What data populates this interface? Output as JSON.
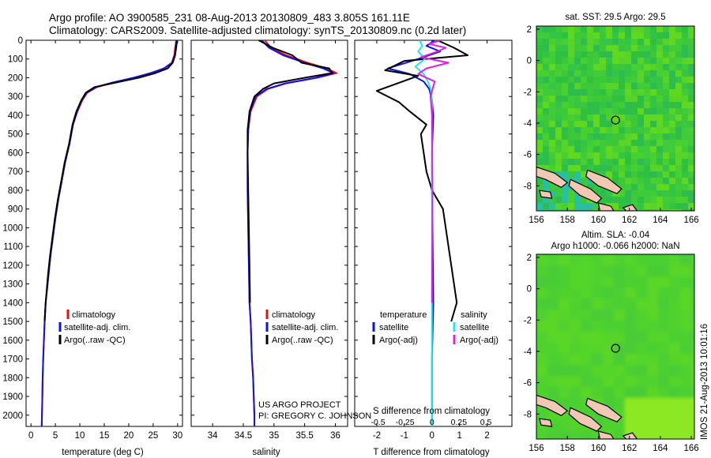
{
  "title": {
    "line1": "Argo profile: AO 3900585_231 08-Aug-2013 20130809_483 3.805S 161.11E",
    "line2": "Climatology: CARS2009. Satellite-adjusted climatology: synTS_20130809.nc (0.2d later)"
  },
  "colors": {
    "climatology": "#e81010",
    "satellite": "#1010e8",
    "argo": "#000000",
    "salinity_satellite": "#20e8e8",
    "salinity_argo": "#e020e0",
    "map_background": "#22cc40",
    "land": "#f0c8b4",
    "shallow": "#20c8c8"
  },
  "chart_data": [
    {
      "type": "line",
      "name": "temperature-profile",
      "xlabel": "temperature (deg C)",
      "ylabel": "",
      "xlim": [
        -1,
        31
      ],
      "ylim": [
        2060,
        0
      ],
      "xticks": [
        0,
        5,
        10,
        15,
        20,
        25,
        30
      ],
      "yticks": [
        0,
        100,
        200,
        300,
        400,
        500,
        600,
        700,
        800,
        900,
        1000,
        1100,
        1200,
        1300,
        1400,
        1500,
        1600,
        1700,
        1800,
        1900,
        2000
      ],
      "legend": {
        "position": "lower-center",
        "entries": [
          "climatology",
          "satellite-adj. clim.",
          "Argo(..raw -QC)"
        ]
      },
      "series": [
        {
          "name": "climatology",
          "color": "#e81010",
          "x": [
            29.7,
            29.5,
            29.3,
            28.8,
            27.2,
            24.5,
            21.0,
            17.0,
            13.5,
            11.5,
            10.5,
            9.5,
            8.6,
            7.9,
            7.0,
            6.3,
            5.6,
            5.0,
            4.5,
            4.0,
            3.6,
            3.0,
            2.8,
            2.5,
            2.4,
            2.3,
            2.2
          ],
          "y": [
            0,
            40,
            80,
            120,
            150,
            175,
            200,
            225,
            250,
            280,
            320,
            380,
            450,
            550,
            650,
            750,
            850,
            950,
            1050,
            1150,
            1250,
            1400,
            1500,
            1700,
            1800,
            1950,
            2060
          ]
        },
        {
          "name": "satellite-adj. clim.",
          "color": "#1010e8",
          "x": [
            29.8,
            29.6,
            29.4,
            28.9,
            27.3,
            24.6,
            21.0,
            16.8,
            13.3,
            11.4,
            10.4,
            9.4,
            8.6,
            7.9,
            7.0,
            6.3,
            5.6,
            5.0,
            4.5,
            4.0,
            3.6,
            3.0,
            2.8,
            2.5,
            2.4,
            2.3,
            2.2
          ],
          "y": [
            0,
            40,
            80,
            120,
            150,
            175,
            200,
            225,
            250,
            280,
            320,
            380,
            450,
            550,
            650,
            750,
            850,
            950,
            1050,
            1150,
            1250,
            1400,
            1500,
            1700,
            1800,
            1950,
            2060
          ]
        },
        {
          "name": "Argo(..raw -QC)",
          "color": "#000000",
          "x": [
            29.9,
            29.7,
            29.5,
            29.0,
            28.0,
            25.5,
            22.0,
            17.5,
            13.0,
            11.2,
            10.3,
            9.3,
            8.5,
            7.8,
            6.9,
            6.2,
            5.5,
            4.9,
            4.4,
            3.9,
            3.5,
            3.0,
            2.8
          ],
          "y": [
            0,
            40,
            80,
            120,
            150,
            175,
            200,
            225,
            250,
            280,
            320,
            380,
            450,
            550,
            650,
            750,
            850,
            950,
            1050,
            1150,
            1250,
            1400,
            1500
          ]
        }
      ]
    },
    {
      "type": "line",
      "name": "salinity-profile",
      "xlabel": "salinity",
      "ylabel": "",
      "xlim": [
        33.65,
        36.2
      ],
      "ylim": [
        2060,
        0
      ],
      "xticks": [
        34,
        34.5,
        35,
        35.5,
        36
      ],
      "legend": {
        "position": "lower-center",
        "entries": [
          "climatology",
          "satellite-adj. clim.",
          "Argo(..raw -QC)"
        ]
      },
      "annotations": [
        "US ARGO PROJECT",
        "PI: GREGORY C. JOHNSON"
      ],
      "series": [
        {
          "name": "climatology",
          "color": "#e81010",
          "x": [
            34.85,
            34.95,
            35.2,
            35.55,
            35.85,
            36.02,
            35.7,
            35.2,
            34.9,
            34.72,
            34.62,
            34.58,
            34.57,
            34.57,
            34.58,
            34.59,
            34.6,
            34.62,
            34.63,
            34.64,
            34.66,
            34.67,
            34.68,
            34.68
          ],
          "y": [
            0,
            40,
            80,
            120,
            150,
            175,
            200,
            230,
            260,
            300,
            380,
            480,
            600,
            800,
            1000,
            1200,
            1400,
            1500,
            1600,
            1700,
            1800,
            1900,
            2000,
            2060
          ]
        },
        {
          "name": "satellite-adj. clim.",
          "color": "#1010e8",
          "x": [
            34.8,
            34.92,
            35.15,
            35.5,
            35.8,
            35.97,
            35.68,
            35.18,
            34.88,
            34.7,
            34.61,
            34.58,
            34.57,
            34.57,
            34.58,
            34.59,
            34.6,
            34.62,
            34.63,
            34.64,
            34.66,
            34.67,
            34.68,
            34.68
          ],
          "y": [
            0,
            40,
            80,
            120,
            150,
            175,
            200,
            230,
            260,
            300,
            380,
            480,
            600,
            800,
            1000,
            1200,
            1400,
            1500,
            1600,
            1700,
            1800,
            1900,
            2000,
            2060
          ]
        },
        {
          "name": "Argo(..raw -QC)",
          "color": "#000000",
          "x": [
            34.75,
            34.98,
            35.3,
            35.45,
            35.9,
            35.95,
            35.5,
            35.0,
            34.82,
            34.68,
            34.6,
            34.57,
            34.57,
            34.58,
            34.59,
            34.6,
            34.61
          ],
          "y": [
            0,
            40,
            80,
            120,
            150,
            175,
            200,
            230,
            260,
            300,
            380,
            480,
            600,
            800,
            1000,
            1200,
            1400
          ]
        }
      ]
    },
    {
      "type": "line",
      "name": "difference-profile",
      "xlabel": "T difference from climatology",
      "x2label": "S difference from climatology",
      "xlim": [
        -2.8,
        2.9
      ],
      "ylim": [
        2060,
        0
      ],
      "xticks": [
        -2,
        -1,
        0,
        1,
        2
      ],
      "x2ticks": [
        -0.5,
        -0.25,
        0,
        0.25,
        0.5
      ],
      "legend": {
        "position": "lower-center",
        "entries": [
          "temperature",
          "satellite",
          "Argo(-adj)",
          "salinity",
          "satellite",
          "Argo(-adj)"
        ]
      },
      "series": [
        {
          "name": "temperature satellite",
          "color": "#1010e8",
          "x": [
            0.1,
            -0.2,
            0.3,
            -0.5,
            -1.6,
            -0.8,
            -0.3,
            -0.1,
            0.0,
            0.05,
            0.0,
            0.0,
            0.02,
            0.05,
            0.0,
            0.0,
            0.0
          ],
          "y": [
            0,
            30,
            60,
            100,
            150,
            180,
            220,
            260,
            320,
            400,
            600,
            800,
            1000,
            1400,
            1700,
            1900,
            2060
          ]
        },
        {
          "name": "temperature Argo(-adj)",
          "color": "#000000",
          "x": [
            0.2,
            0.8,
            1.3,
            -1.0,
            -1.7,
            -0.5,
            -2.0,
            -1.2,
            -0.8,
            -0.2,
            -0.4,
            -0.3,
            -0.2,
            0.0,
            0.4,
            0.5,
            0.7,
            0.9,
            0.7
          ],
          "y": [
            0,
            40,
            80,
            110,
            160,
            190,
            270,
            330,
            380,
            450,
            500,
            600,
            700,
            800,
            900,
            1000,
            1200,
            1400,
            1500
          ]
        },
        {
          "name": "salinity satellite",
          "color": "#20e8e8",
          "x": [
            -0.45,
            -0.35,
            -0.5,
            -0.25,
            -0.6,
            -0.3,
            -0.15,
            -0.05,
            0.0,
            0.0,
            0.0,
            0.0,
            0.0,
            0.0,
            0.0
          ],
          "y": [
            0,
            30,
            60,
            100,
            140,
            180,
            220,
            260,
            320,
            400,
            600,
            1000,
            1500,
            1900,
            2060
          ]
        },
        {
          "name": "salinity Argo(-adj)",
          "color": "#e020e0",
          "x": [
            0.3,
            -0.1,
            0.5,
            0.2,
            -0.4,
            0.6,
            -0.2,
            -0.5,
            0.1,
            -0.05,
            0.0,
            0.02,
            0.0
          ],
          "y": [
            0,
            20,
            40,
            60,
            90,
            120,
            150,
            180,
            220,
            300,
            400,
            800,
            1400
          ]
        }
      ]
    },
    {
      "type": "heatmap",
      "name": "sst-map",
      "title": "sat. SST: 29.5 Argo: 29.5",
      "xlim": [
        156,
        166.2
      ],
      "ylim": [
        -9.6,
        2.2
      ],
      "xticks": [
        156,
        158,
        160,
        162,
        164,
        166
      ],
      "yticks": [
        2,
        0,
        -2,
        -4,
        -6,
        -8
      ],
      "marker": {
        "lon": 161.11,
        "lat": -3.805
      }
    },
    {
      "type": "heatmap",
      "name": "sla-map",
      "title": "Altim. SLA: -0.04",
      "subtitle": "Argo h1000: -0.066 h2000: NaN",
      "xlim": [
        156,
        166.2
      ],
      "ylim": [
        -9.6,
        2.2
      ],
      "xticks": [
        156,
        158,
        160,
        162,
        164,
        166
      ],
      "yticks": [
        2,
        0,
        -2,
        -4,
        -6,
        -8
      ],
      "marker": {
        "lon": 161.11,
        "lat": -3.805
      }
    }
  ],
  "footer": {
    "stamp": "IMOS 21-Aug-2013 10:01:16"
  }
}
